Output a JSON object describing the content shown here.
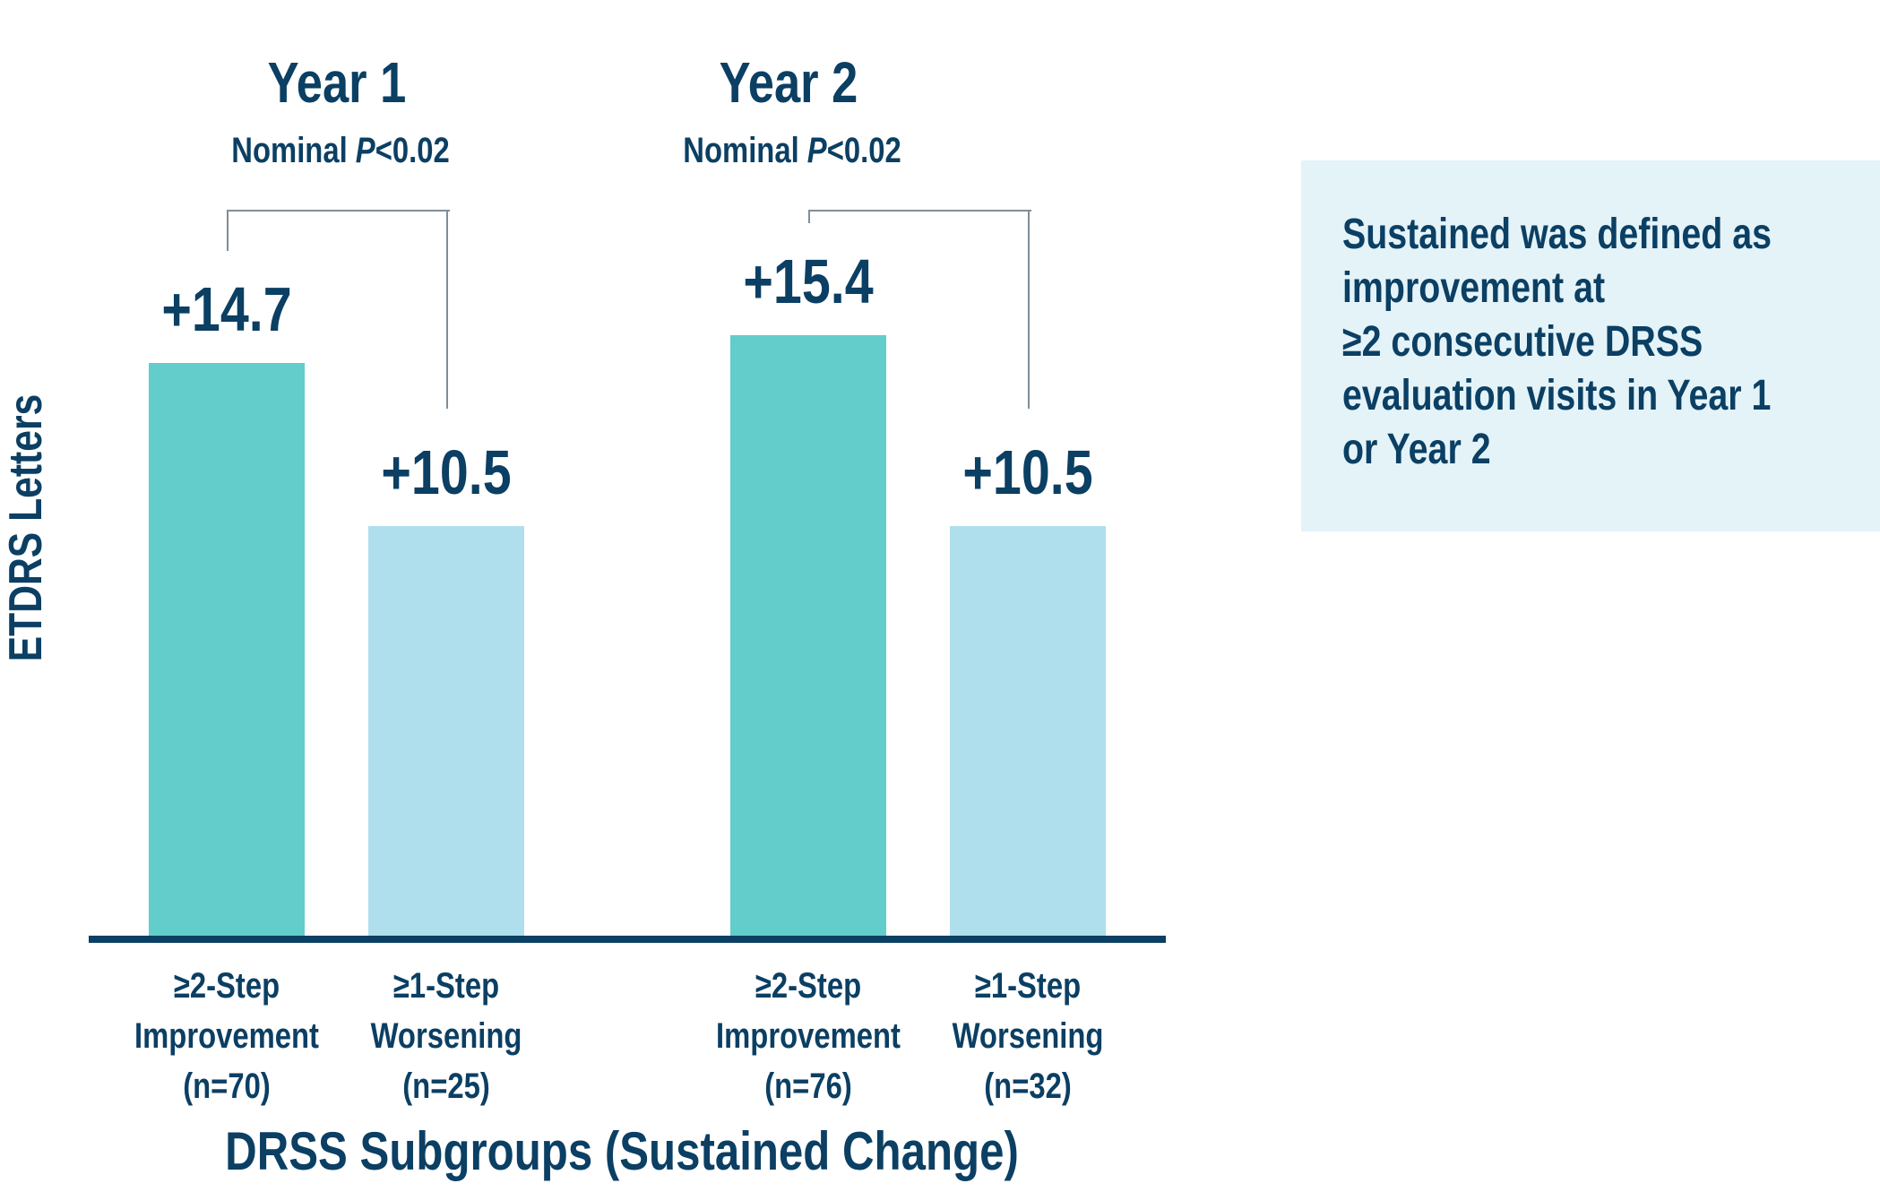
{
  "chart_data": {
    "type": "bar",
    "ylabel": "ETDRS Letters",
    "xlabel": "DRSS Subgroups (Sustained Change)",
    "groups": [
      {
        "title": "Year 1",
        "pvalue_prefix": "Nominal ",
        "pvalue_italic": "P",
        "pvalue_suffix": "<0.02",
        "bars": [
          {
            "label_lines": [
              "≥2-Step",
              "Improvement",
              "(n=70)"
            ],
            "value": 14.7,
            "value_label": "+14.7",
            "color": "#62cdca"
          },
          {
            "label_lines": [
              "≥1-Step",
              "Worsening",
              "(n=25)"
            ],
            "value": 10.5,
            "value_label": "+10.5",
            "color": "#afdfec"
          }
        ]
      },
      {
        "title": "Year 2",
        "pvalue_prefix": "Nominal ",
        "pvalue_italic": "P",
        "pvalue_suffix": "<0.02",
        "bars": [
          {
            "label_lines": [
              "≥2-Step",
              "Improvement",
              "(n=76)"
            ],
            "value": 15.4,
            "value_label": "+15.4",
            "color": "#62cdca"
          },
          {
            "label_lines": [
              "≥1-Step",
              "Worsening",
              "(n=32)"
            ],
            "value": 10.5,
            "value_label": "+10.5",
            "color": "#afdfec"
          }
        ]
      }
    ],
    "ylim": [
      0,
      16
    ],
    "grid": false
  },
  "note": "Sustained was defined as\nimprovement at\n≥2 consecutive DRSS\nevaluation visits in Year 1\nor Year 2",
  "colors": {
    "text": "#0b3f63",
    "note_bg": "#e4f3f8",
    "bracket": "#7f8e98"
  }
}
